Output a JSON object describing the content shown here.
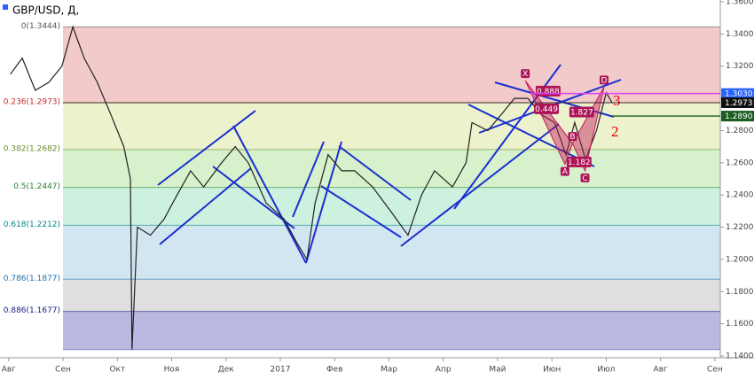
{
  "chart_data": {
    "type": "line",
    "title": "GBP/USD, Д,",
    "x": [
      0.03,
      0.25,
      0.49,
      0.74,
      0.98,
      1.18,
      1.39,
      1.63,
      1.88,
      2.12,
      2.24,
      2.27,
      2.37,
      2.61,
      2.86,
      3.1,
      3.35,
      3.59,
      3.92,
      4.17,
      4.41,
      4.74,
      5.07,
      5.31,
      5.49,
      5.64,
      5.88,
      6.13,
      6.37,
      6.7,
      7.03,
      7.35,
      7.6,
      7.84,
      8.17,
      8.42,
      8.53,
      8.82,
      9.07,
      9.31,
      9.56,
      9.8,
      10.05,
      10.26,
      10.42,
      10.62,
      10.82,
      11.0,
      11.11
    ],
    "values": [
      1.315,
      1.325,
      1.305,
      1.31,
      1.32,
      1.3444,
      1.325,
      1.31,
      1.29,
      1.27,
      1.25,
      1.144,
      1.22,
      1.215,
      1.225,
      1.24,
      1.255,
      1.245,
      1.26,
      1.27,
      1.26,
      1.235,
      1.225,
      1.21,
      1.2,
      1.235,
      1.265,
      1.255,
      1.255,
      1.245,
      1.23,
      1.215,
      1.24,
      1.255,
      1.245,
      1.26,
      1.285,
      1.28,
      1.29,
      1.3,
      1.3,
      1.29,
      1.285,
      1.265,
      1.285,
      1.262,
      1.28,
      1.3035,
      1.2973
    ],
    "color": "#222222",
    "xlim": [
      -0.16,
      13.1
    ],
    "xticks": [
      {
        "value": 0,
        "label": "Авг"
      },
      {
        "value": 1,
        "label": "Сен"
      },
      {
        "value": 2,
        "label": "Окт"
      },
      {
        "value": 3,
        "label": "Ноя"
      },
      {
        "value": 4,
        "label": "Дек"
      },
      {
        "value": 5,
        "label": "2017"
      },
      {
        "value": 6,
        "label": "Фев"
      },
      {
        "value": 7,
        "label": "Мар"
      },
      {
        "value": 8,
        "label": "Апр"
      },
      {
        "value": 9,
        "label": "Май"
      },
      {
        "value": 10,
        "label": "Июн"
      },
      {
        "value": 11,
        "label": "Июл"
      },
      {
        "value": 12,
        "label": "Авг"
      },
      {
        "value": 13,
        "label": "Сен"
      }
    ],
    "ylim": [
      1.1389,
      1.3611
    ],
    "yticks": [
      {
        "value": 1.14,
        "label": "1.1400"
      },
      {
        "value": 1.16,
        "label": "1.1600"
      },
      {
        "value": 1.18,
        "label": "1.1800"
      },
      {
        "value": 1.2,
        "label": "1.2000"
      },
      {
        "value": 1.22,
        "label": "1.2200"
      },
      {
        "value": 1.24,
        "label": "1.2400"
      },
      {
        "value": 1.26,
        "label": "1.2600"
      },
      {
        "value": 1.28,
        "label": "1.2800"
      },
      {
        "value": 1.3,
        "label": "1.3000"
      },
      {
        "value": 1.32,
        "label": "1.3200"
      },
      {
        "value": 1.34,
        "label": "1.3400"
      },
      {
        "value": 1.36,
        "label": "1.3600"
      }
    ],
    "fib_levels": [
      {
        "value": 1.3444,
        "label": "0(1.3444)",
        "label_color": "#555555",
        "color": "#f2c4c4"
      },
      {
        "value": 1.2973,
        "label": "0.236(1.2973)",
        "label_color": "#c62828",
        "color": "#eaf2c6"
      },
      {
        "value": 1.2682,
        "label": "0.382(1.2682)",
        "label_color": "#6b8e23",
        "color": "#d3f0c6"
      },
      {
        "value": 1.2447,
        "label": "0.5(1.2447)",
        "label_color": "#2e7d32",
        "color": "#c8eedc"
      },
      {
        "value": 1.2212,
        "label": "0.618(1.2212)",
        "label_color": "#00897b",
        "color": "#cde3ef"
      },
      {
        "value": 1.1877,
        "label": "0.786(1.1877)",
        "label_color": "#1e6fb0",
        "color": "#dcdcdc"
      },
      {
        "value": 1.1677,
        "label": "0.886(1.1677)",
        "label_color": "#1a237e",
        "color": "#b3b0dd"
      }
    ],
    "fib_end": 1.144,
    "fib_start_x": 1.0,
    "price_labels": [
      {
        "value": 1.303,
        "label": "1.3030",
        "color": "#2962ff",
        "line_color": "#e040fb",
        "from_x": 9.6
      },
      {
        "value": 1.2973,
        "label": "1.2973",
        "color": "#111111",
        "line_color": "#111111",
        "from_x": 1.0
      },
      {
        "value": 1.289,
        "label": "1.2890",
        "color": "#1b5e20",
        "line_color": "#1b5e20",
        "from_x": 11.1
      }
    ],
    "pattern": {
      "points": [
        {
          "name": "X",
          "x": 9.51,
          "y": 1.311
        },
        {
          "name": "A",
          "x": 10.24,
          "y": 1.259
        },
        {
          "name": "B",
          "x": 10.38,
          "y": 1.272
        },
        {
          "name": "C",
          "x": 10.61,
          "y": 1.255
        },
        {
          "name": "D",
          "x": 10.96,
          "y": 1.307
        }
      ],
      "ratios": [
        0.888,
        0.449,
        1.827,
        1.182
      ]
    },
    "annotations": [
      "3",
      "2"
    ]
  }
}
